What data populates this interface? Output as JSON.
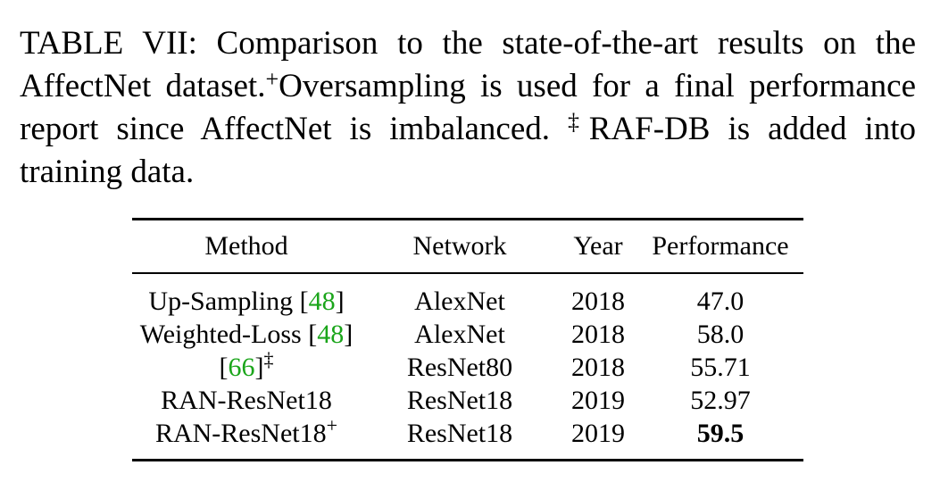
{
  "caption": {
    "label": "TABLE VII:",
    "text_1": " Comparison to the state-of-the-art results on the AffectNet dataset.",
    "plus_mark": "+",
    "text_2": "Oversampling is used for a final performance report since AffectNet is imbalanced. ",
    "ddagger_mark": "‡",
    "text_3": "RAF-DB is added into training data."
  },
  "table": {
    "headers": {
      "method": "Method",
      "network": "Network",
      "year": "Year",
      "performance": "Performance"
    },
    "rows": [
      {
        "method": "Up-Sampling ",
        "open": "[",
        "cite": "48",
        "close": "]",
        "sup": "",
        "network": "AlexNet",
        "year": "2018",
        "performance": "47.0"
      },
      {
        "method": "Weighted-Loss ",
        "open": "[",
        "cite": "48",
        "close": "]",
        "sup": "",
        "network": "AlexNet",
        "year": "2018",
        "performance": "58.0"
      },
      {
        "method": "",
        "open": "[",
        "cite": "66",
        "close": "]",
        "sup": "‡",
        "network": "ResNet80",
        "year": "2018",
        "performance": "55.71"
      },
      {
        "method": "RAN-ResNet18",
        "open": "",
        "cite": "",
        "close": "",
        "sup": "",
        "network": "ResNet18",
        "year": "2019",
        "performance": "52.97"
      },
      {
        "method": "RAN-ResNet18",
        "open": "",
        "cite": "",
        "close": "",
        "sup": "+",
        "network": "ResNet18",
        "year": "2019",
        "performance": "59.5"
      }
    ]
  },
  "colors": {
    "citation": "#1aa51a",
    "text": "#000000"
  }
}
